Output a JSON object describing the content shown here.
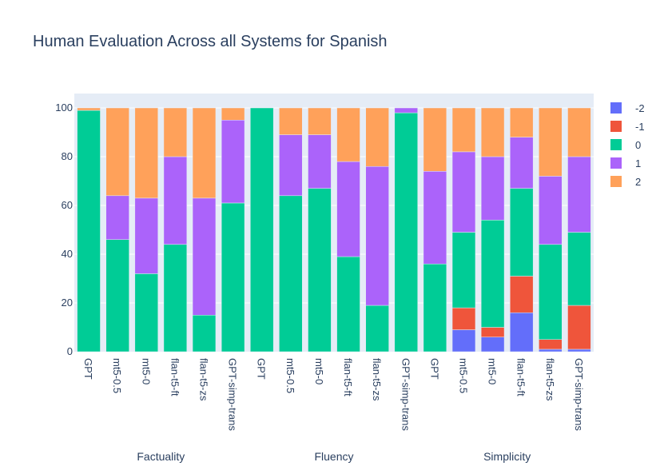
{
  "chart_data": {
    "type": "bar",
    "stacked": true,
    "title": "Human Evaluation Across all Systems for Spanish",
    "xlabel": "",
    "ylabel": "",
    "ylim": [
      0,
      100
    ],
    "yticks": [
      0,
      20,
      40,
      60,
      80,
      100
    ],
    "grid": true,
    "legend_position": "top-right",
    "groups": [
      {
        "label": "Factuality",
        "categories": [
          "GPT",
          "mt5-0.5",
          "mt5-0",
          "flan-t5-ft",
          "flan-t5-zs",
          "GPT-simp-trans"
        ]
      },
      {
        "label": "Fluency",
        "categories": [
          "GPT",
          "mt5-0.5",
          "mt5-0",
          "flan-t5-ft",
          "flan-t5-zs",
          "GPT-simp-trans"
        ]
      },
      {
        "label": "Simplicity",
        "categories": [
          "GPT",
          "mt5-0.5",
          "mt5-0",
          "flan-t5-ft",
          "flan-t5-zs",
          "GPT-simp-trans"
        ]
      }
    ],
    "series": [
      {
        "name": "-2",
        "color": "#636efa",
        "values": [
          0,
          0,
          0,
          0,
          0,
          0,
          0,
          0,
          0,
          0,
          0,
          0,
          0,
          9,
          6,
          16,
          1,
          1
        ]
      },
      {
        "name": "-1",
        "color": "#ef553b",
        "values": [
          0,
          0,
          0,
          0,
          0,
          0,
          0,
          0,
          0,
          0,
          0,
          0,
          0,
          9,
          4,
          15,
          4,
          18
        ]
      },
      {
        "name": "0",
        "color": "#00cc96",
        "values": [
          99,
          46,
          32,
          44,
          15,
          61,
          100,
          64,
          67,
          39,
          19,
          98,
          36,
          31,
          44,
          36,
          39,
          30
        ]
      },
      {
        "name": "1",
        "color": "#ab63fa",
        "values": [
          0,
          18,
          31,
          36,
          48,
          34,
          0,
          25,
          22,
          39,
          57,
          2,
          38,
          33,
          26,
          21,
          28,
          31
        ]
      },
      {
        "name": "2",
        "color": "#ffa15a",
        "values": [
          1,
          36,
          37,
          20,
          37,
          5,
          0,
          11,
          11,
          22,
          24,
          0,
          26,
          18,
          20,
          12,
          28,
          20
        ]
      }
    ]
  }
}
